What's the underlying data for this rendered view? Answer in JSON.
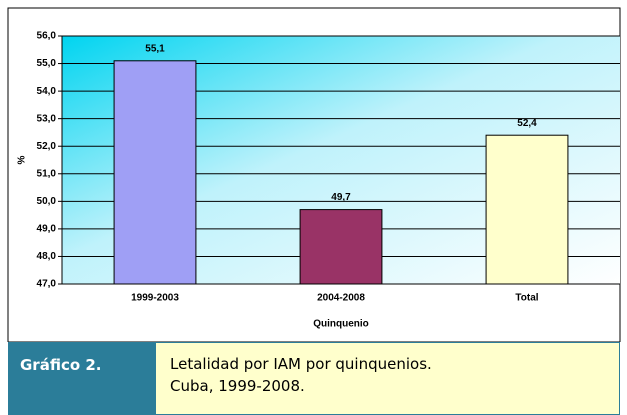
{
  "chart_data": {
    "type": "bar",
    "categories": [
      "1999-2003",
      "2004-2008",
      "Total"
    ],
    "values": [
      55.1,
      49.7,
      52.4
    ],
    "value_labels": [
      "55,1",
      "49,7",
      "52,4"
    ],
    "colors": [
      "#9f9ff5",
      "#993366",
      "#ffffcc"
    ],
    "xlabel": "Quinquenio",
    "ylabel": "%",
    "ylim": [
      47,
      56
    ],
    "yticks": [
      {
        "value": 47,
        "label": "47,0"
      },
      {
        "value": 48,
        "label": "48,0"
      },
      {
        "value": 49,
        "label": "49,0"
      },
      {
        "value": 50,
        "label": "50,0"
      },
      {
        "value": 51,
        "label": "51,0"
      },
      {
        "value": 52,
        "label": "52,0"
      },
      {
        "value": 53,
        "label": "53,0"
      },
      {
        "value": 54,
        "label": "54,0"
      },
      {
        "value": 55,
        "label": "55,0"
      },
      {
        "value": 56,
        "label": "56,0"
      }
    ],
    "grid": true
  },
  "caption": {
    "label": "Gráfico 2.",
    "lines": [
      "Letalidad por IAM por quinquenios.",
      "Cuba, 1999-2008."
    ]
  }
}
